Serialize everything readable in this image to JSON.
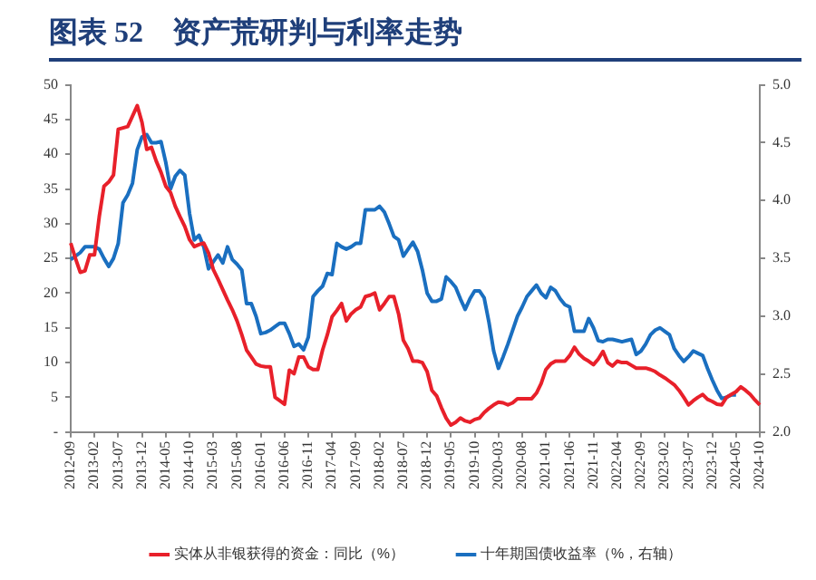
{
  "chart_data": {
    "type": "line",
    "title": "图表 52　资产荒研判与利率走势",
    "categories": [
      "2012-09",
      null,
      null,
      null,
      null,
      "2013-02",
      null,
      null,
      null,
      null,
      "2013-07",
      null,
      null,
      null,
      null,
      "2013-12",
      null,
      null,
      null,
      null,
      "2014-05",
      null,
      null,
      null,
      null,
      "2014-10",
      null,
      null,
      null,
      null,
      "2015-03",
      null,
      null,
      null,
      null,
      "2015-08",
      null,
      null,
      null,
      null,
      "2016-01",
      null,
      null,
      null,
      null,
      "2016-06",
      null,
      null,
      null,
      null,
      "2016-11",
      null,
      null,
      null,
      null,
      "2017-04",
      null,
      null,
      null,
      null,
      "2017-09",
      null,
      null,
      null,
      null,
      "2018-02",
      null,
      null,
      null,
      null,
      "2018-07",
      null,
      null,
      null,
      null,
      "2018-12",
      null,
      null,
      null,
      null,
      "2019-05",
      null,
      null,
      null,
      null,
      "2019-10",
      null,
      null,
      null,
      null,
      "2020-03",
      null,
      null,
      null,
      null,
      "2020-08",
      null,
      null,
      null,
      null,
      "2021-01",
      null,
      null,
      null,
      null,
      "2021-06",
      null,
      null,
      null,
      null,
      "2021-11",
      null,
      null,
      null,
      null,
      "2022-04",
      null,
      null,
      null,
      null,
      "2022-09",
      null,
      null,
      null,
      null,
      "2023-02",
      null,
      null,
      null,
      null,
      "2023-07",
      null,
      null,
      null,
      null,
      "2023-12",
      null,
      null,
      null,
      null,
      "2024-05",
      null,
      null,
      null,
      null,
      "2024-10"
    ],
    "series": [
      {
        "name": "实体从非银获得的资金：同比（%）",
        "color": "#e8202a",
        "values": [
          27.2,
          25,
          23,
          23.2,
          25.5,
          25.5,
          31,
          35.4,
          36,
          37,
          43.6,
          43.8,
          44,
          45.5,
          47,
          44.6,
          40.7,
          41,
          39,
          37.4,
          35.4,
          34.5,
          32.5,
          31,
          29.6,
          27.7,
          26.7,
          27,
          27.2,
          25.8,
          23.4,
          22,
          20.5,
          19,
          17.6,
          16,
          14,
          11.8,
          10.8,
          9.8,
          9.5,
          9.4,
          9.4,
          5,
          4.5,
          4,
          8.9,
          8.4,
          10.8,
          10.8,
          9.4,
          9,
          9,
          11.8,
          14,
          16.6,
          17.5,
          18.5,
          16,
          17,
          17.6,
          18,
          19.5,
          19.7,
          20,
          17.6,
          18.5,
          19.5,
          19.5,
          17,
          13.2,
          12,
          10.2,
          10.2,
          10,
          8.7,
          6,
          5.2,
          3.5,
          2,
          1,
          1.4,
          2,
          1.6,
          1.4,
          1.8,
          2,
          2.8,
          3.4,
          3.9,
          4.3,
          4.2,
          3.9,
          4.2,
          4.8,
          4.8,
          4.8,
          4.8,
          5.6,
          7,
          9,
          9.8,
          10.2,
          10.2,
          10.2,
          11,
          12.2,
          11.2,
          10.6,
          10.2,
          9.7,
          10.5,
          11.6,
          10,
          9.5,
          10.2,
          10,
          10,
          9.6,
          9.2,
          9.2,
          9.2,
          9,
          8.7,
          8.2,
          7.8,
          7.3,
          6.8,
          6,
          5,
          3.9,
          4.5,
          5,
          5.4,
          4.7,
          4.4,
          4,
          3.9,
          5,
          5.4,
          5.8,
          6.5,
          6,
          5.4,
          4.6,
          3.9
        ]
      },
      {
        "name": "十年期国债收益率（%，右轴）",
        "color": "#1a6fc0",
        "axis": "y2",
        "values": [
          3.49,
          3.52,
          3.55,
          3.6,
          3.6,
          3.6,
          3.58,
          3.5,
          3.43,
          3.5,
          3.63,
          3.98,
          4.05,
          4.15,
          4.44,
          4.55,
          4.57,
          4.5,
          4.5,
          4.51,
          4.33,
          4.1,
          4.21,
          4.26,
          4.22,
          3.89,
          3.66,
          3.7,
          3.6,
          3.41,
          3.47,
          3.53,
          3.46,
          3.6,
          3.49,
          3.45,
          3.4,
          3.11,
          3.11,
          3.0,
          2.85,
          2.86,
          2.88,
          2.91,
          2.94,
          2.94,
          2.85,
          2.74,
          2.76,
          2.71,
          2.82,
          3.17,
          3.22,
          3.26,
          3.37,
          3.36,
          3.63,
          3.6,
          3.58,
          3.6,
          3.63,
          3.63,
          3.92,
          3.92,
          3.92,
          3.95,
          3.9,
          3.8,
          3.69,
          3.66,
          3.52,
          3.58,
          3.64,
          3.56,
          3.4,
          3.2,
          3.13,
          3.13,
          3.15,
          3.34,
          3.3,
          3.25,
          3.15,
          3.06,
          3.15,
          3.22,
          3.22,
          3.16,
          2.95,
          2.7,
          2.55,
          2.65,
          2.76,
          2.88,
          3.0,
          3.08,
          3.17,
          3.22,
          3.27,
          3.2,
          3.16,
          3.25,
          3.22,
          3.15,
          3.1,
          3.08,
          2.87,
          2.87,
          2.87,
          2.98,
          2.9,
          2.79,
          2.78,
          2.8,
          2.8,
          2.79,
          2.78,
          2.79,
          2.8,
          2.67,
          2.7,
          2.76,
          2.84,
          2.88,
          2.9,
          2.87,
          2.84,
          2.72,
          2.66,
          2.61,
          2.65,
          2.7,
          2.68,
          2.66,
          2.55,
          2.45,
          2.36,
          2.29,
          2.3,
          2.32,
          2.32,
          null,
          null,
          null,
          null,
          null
        ]
      }
    ],
    "ylim": [
      0,
      50
    ],
    "yticks": [
      {
        "value": 0,
        "label": "-"
      },
      5,
      10,
      15,
      20,
      25,
      30,
      35,
      40,
      45,
      50
    ],
    "y2lim": [
      2,
      5
    ],
    "y2ticks": [
      {
        "value": 2,
        "label": "2.0"
      },
      2.5,
      {
        "value": 3,
        "label": "3.0"
      },
      3.5,
      {
        "value": 4,
        "label": "4.0"
      },
      4.5,
      {
        "value": 5,
        "label": "5.0"
      }
    ],
    "grid": false,
    "legend": "bottom",
    "marker": "none",
    "line_style": "solid"
  }
}
